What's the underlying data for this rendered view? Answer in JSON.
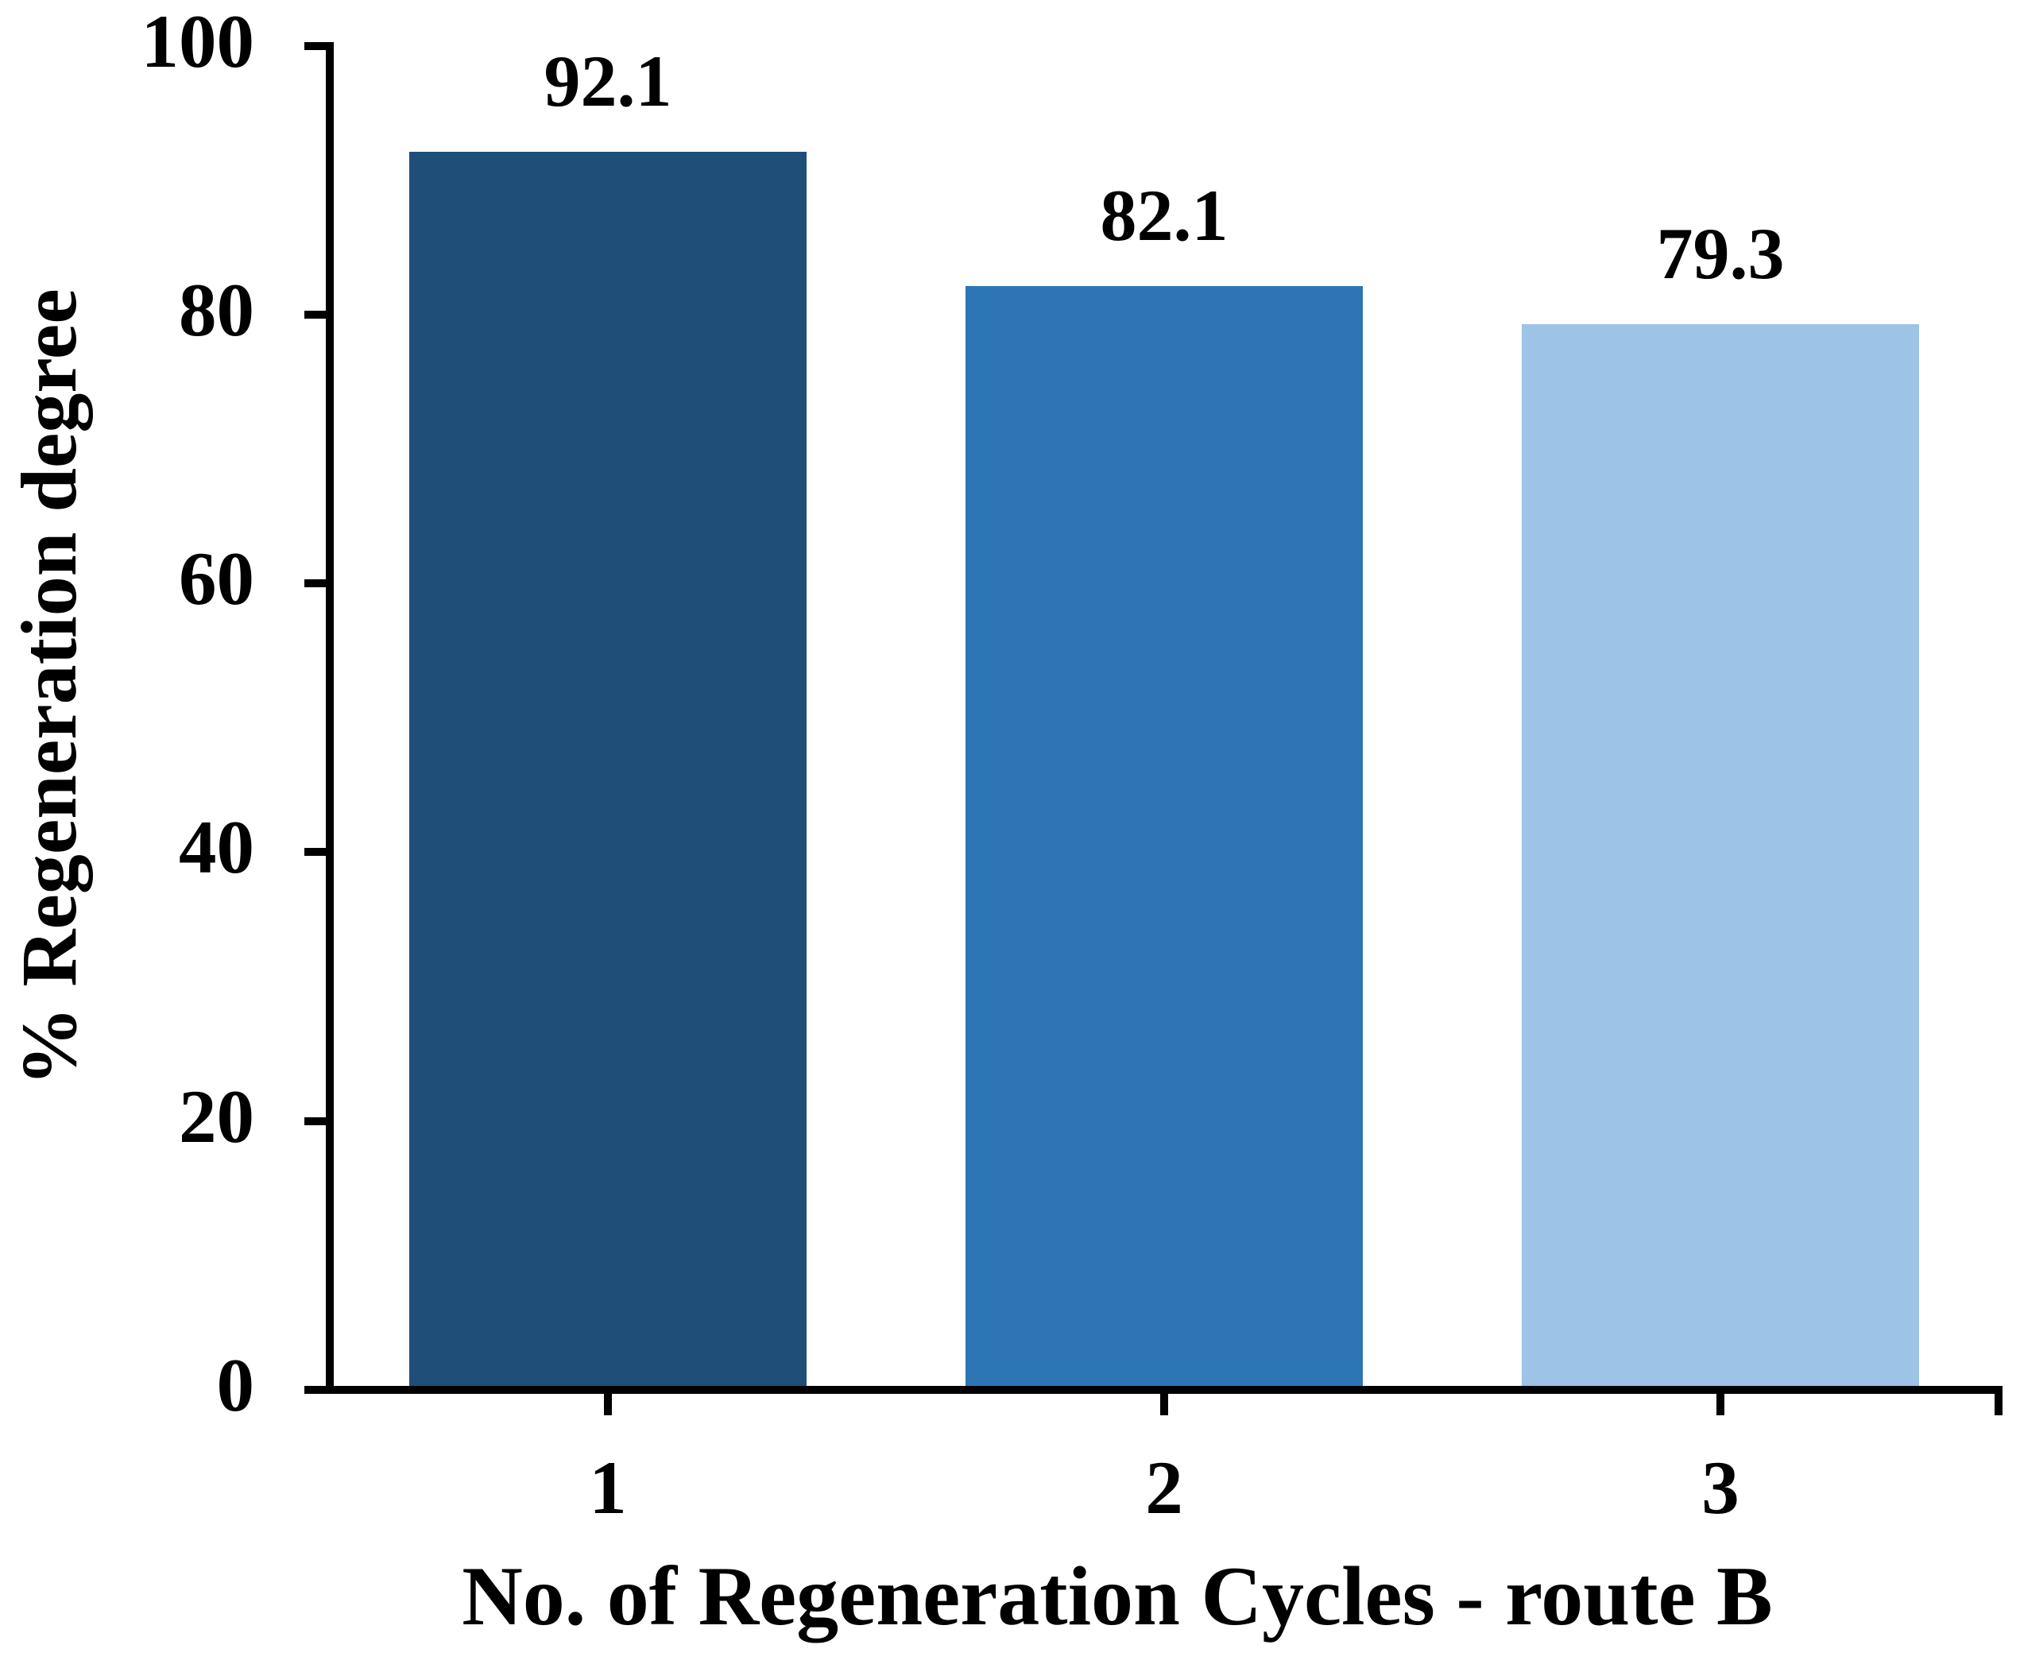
{
  "chart_data": {
    "type": "bar",
    "title": "",
    "categories": [
      "1",
      "2",
      "3"
    ],
    "values": [
      92.1,
      82.1,
      79.3
    ],
    "data_labels": [
      "92.1",
      "82.1",
      "79.3"
    ],
    "bar_colors": [
      "#1F4E79",
      "#2E75B6",
      "#9DC3E6"
    ],
    "xlabel": "No. of Regeneration Cycles - route B",
    "ylabel": "% Regeneration degree",
    "ylim": [
      0,
      100
    ],
    "yticks": [
      0,
      20,
      40,
      60,
      80,
      100
    ],
    "ytick_labels": [
      "0",
      "20",
      "40",
      "60",
      "80",
      "100"
    ],
    "grid": false,
    "legend": false,
    "axis_color": "#000000",
    "text_color": "#000000",
    "background_color": "#FFFFFF",
    "bar_orientation": "vertical",
    "data_labels_position": "above-bar"
  }
}
